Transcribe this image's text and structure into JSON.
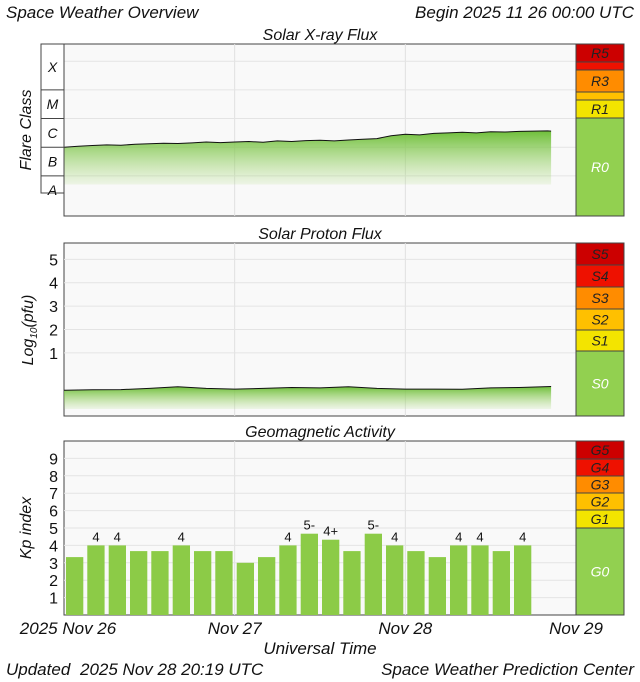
{
  "header": {
    "title": "Space Weather Overview",
    "begin": "Begin 2025 11 26 00:00 UTC"
  },
  "footer": {
    "updated_label": "Updated",
    "updated_time": "2025 Nov 28 20:19 UTC",
    "center": "Space Weather Prediction Center"
  },
  "colors": {
    "green": "#92d050",
    "bright_green": "#8ccb47",
    "yellow": "#f3e400",
    "light_orange": "#ffc000",
    "orange": "#ff8c00",
    "red": "#ee1100",
    "dark_red": "#cc0000",
    "panel_bg": "#f9f9f9",
    "grid": "#e4e4e4"
  },
  "chart_data": [
    {
      "type": "area",
      "title": "Solar X-ray Flux",
      "ylabel": "Flare Class",
      "y_classes": [
        "X",
        "M",
        "C",
        "B",
        "A"
      ],
      "x_ticks": [
        "2025 Nov 26",
        "Nov 27",
        "Nov 28",
        "Nov 29"
      ],
      "x_range_hours": [
        0,
        72
      ],
      "log_scale": true,
      "ylim_log10_wm2": [
        -8.4,
        -2.4
      ],
      "x_hours": [
        0,
        2,
        4,
        6,
        8,
        10,
        12,
        14,
        16,
        18,
        20,
        22,
        24,
        26,
        28,
        30,
        32,
        34,
        36,
        38,
        40,
        42,
        44,
        46,
        48,
        50,
        52,
        54,
        56,
        58,
        60,
        62,
        64,
        66,
        68,
        68.5
      ],
      "log10_flux": [
        -6.0,
        -5.97,
        -5.94,
        -5.92,
        -5.93,
        -5.9,
        -5.88,
        -5.86,
        -5.87,
        -5.85,
        -5.82,
        -5.84,
        -5.82,
        -5.8,
        -5.83,
        -5.78,
        -5.8,
        -5.77,
        -5.76,
        -5.78,
        -5.75,
        -5.72,
        -5.7,
        -5.6,
        -5.55,
        -5.57,
        -5.52,
        -5.5,
        -5.48,
        -5.5,
        -5.46,
        -5.47,
        -5.45,
        -5.44,
        -5.43,
        -5.44
      ],
      "scale_labels": [
        {
          "label": "R5",
          "color": "#cc0000"
        },
        {
          "label": "",
          "color": "#ee1100"
        },
        {
          "label": "R3",
          "color": "#ff8c00"
        },
        {
          "label": "",
          "color": "#ffc000"
        },
        {
          "label": "R1",
          "color": "#f3e400"
        },
        {
          "label": "R0",
          "color": "#92d050"
        }
      ]
    },
    {
      "type": "area",
      "title": "Solar Proton Flux",
      "ylabel": "Log10(pfu)",
      "ylabel_main": "Log",
      "ylabel_sub": "10",
      "ylabel_tail": "(pfu)",
      "y_ticks": [
        "1",
        "2",
        "3",
        "4",
        "5"
      ],
      "ylim_log10_pfu": [
        -1.7,
        5.7
      ],
      "x_hours": [
        0,
        4,
        8,
        12,
        16,
        20,
        24,
        28,
        32,
        36,
        40,
        44,
        48,
        52,
        56,
        60,
        64,
        68.5
      ],
      "log10_pfu": [
        -0.6,
        -0.58,
        -0.57,
        -0.52,
        -0.45,
        -0.52,
        -0.55,
        -0.52,
        -0.48,
        -0.5,
        -0.45,
        -0.52,
        -0.55,
        -0.55,
        -0.56,
        -0.5,
        -0.48,
        -0.44
      ],
      "scale_labels": [
        {
          "label": "S5",
          "color": "#cc0000"
        },
        {
          "label": "S4",
          "color": "#ee1100"
        },
        {
          "label": "S3",
          "color": "#ff8c00"
        },
        {
          "label": "S2",
          "color": "#ffc000"
        },
        {
          "label": "S1",
          "color": "#f3e400"
        },
        {
          "label": "S0",
          "color": "#92d050"
        }
      ]
    },
    {
      "type": "bar",
      "title": "Geomagnetic Activity",
      "ylabel": "Kp index",
      "xlabel": "Universal Time",
      "y_ticks": [
        "1",
        "2",
        "3",
        "4",
        "5",
        "6",
        "7",
        "8",
        "9"
      ],
      "ylim": [
        0,
        10
      ],
      "x_ticks": [
        "2025 Nov 26",
        "Nov 27",
        "Nov 28",
        "Nov 29"
      ],
      "x_range_hours": [
        0,
        72
      ],
      "bar_width_hours": 3,
      "kp_values": [
        3.33,
        4.0,
        4.0,
        3.67,
        3.67,
        4.0,
        3.67,
        3.67,
        3.0,
        3.33,
        4.0,
        4.67,
        4.33,
        3.67,
        4.67,
        4.0,
        3.67,
        3.33,
        4.0,
        4.0,
        3.67,
        4.0
      ],
      "kp_labels": [
        "",
        "4",
        "4",
        "",
        "",
        "4",
        "",
        "",
        "",
        "",
        "4",
        "5-",
        "4+",
        "",
        "5-",
        "4",
        "",
        "",
        "4",
        "4",
        "",
        "4"
      ],
      "scale_labels": [
        {
          "label": "G5",
          "color": "#cc0000"
        },
        {
          "label": "G4",
          "color": "#ee1100"
        },
        {
          "label": "G3",
          "color": "#ff8c00"
        },
        {
          "label": "G2",
          "color": "#ffc000"
        },
        {
          "label": "G1",
          "color": "#f3e400"
        },
        {
          "label": "G0",
          "color": "#92d050"
        }
      ]
    }
  ]
}
